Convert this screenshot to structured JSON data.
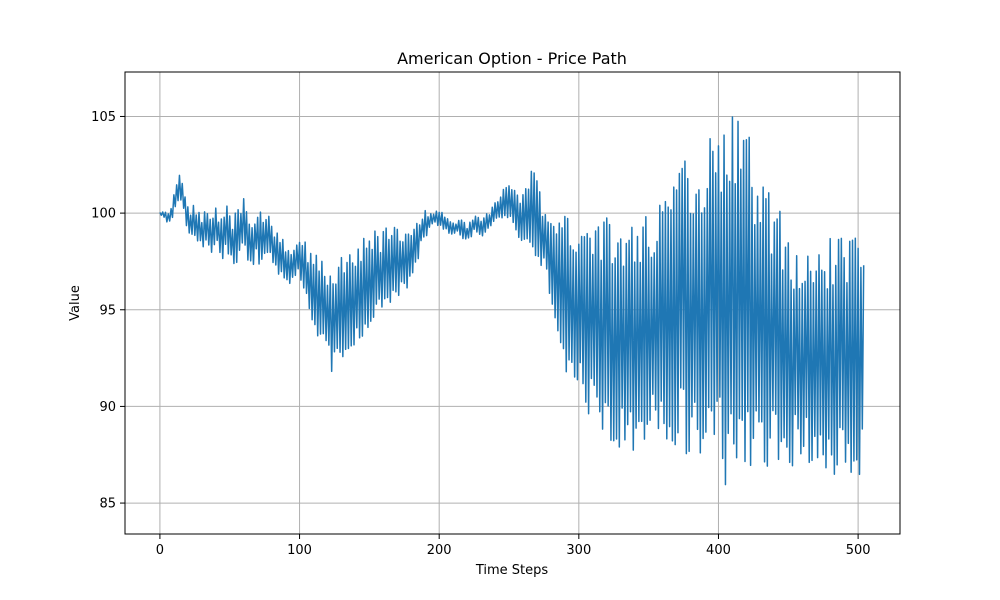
{
  "chart_data": {
    "type": "line",
    "title": "American Option - Price Path",
    "xlabel": "Time Steps",
    "ylabel": "Value",
    "xlim": [
      -25,
      530
    ],
    "ylim": [
      83.4,
      107.3
    ],
    "xticks": [
      0,
      100,
      200,
      300,
      400,
      500
    ],
    "yticks": [
      85,
      90,
      95,
      100,
      105
    ],
    "grid": true,
    "line_color": "#1f77b4",
    "series": [
      {
        "points": [
          [
            0,
            100.0
          ],
          [
            3,
            99.9
          ],
          [
            6,
            99.7
          ],
          [
            8,
            99.95
          ],
          [
            10,
            100.4
          ],
          [
            12,
            100.9
          ],
          [
            14,
            101.3
          ],
          [
            16,
            101.0
          ],
          [
            18,
            100.4
          ],
          [
            20,
            99.6
          ],
          [
            22,
            99.3
          ],
          [
            24,
            99.8
          ],
          [
            26,
            99.1
          ],
          [
            28,
            99.5
          ],
          [
            30,
            98.9
          ],
          [
            33,
            99.4
          ],
          [
            36,
            98.8
          ],
          [
            40,
            99.2
          ],
          [
            44,
            98.7
          ],
          [
            48,
            99.0
          ],
          [
            52,
            98.6
          ],
          [
            56,
            98.9
          ],
          [
            60,
            99.2
          ],
          [
            63,
            98.7
          ],
          [
            66,
            98.3
          ],
          [
            70,
            98.9
          ],
          [
            74,
            98.5
          ],
          [
            78,
            98.8
          ],
          [
            82,
            98.2
          ],
          [
            86,
            97.8
          ],
          [
            90,
            97.4
          ],
          [
            94,
            97.2
          ],
          [
            98,
            97.6
          ],
          [
            102,
            97.4
          ],
          [
            105,
            96.9
          ],
          [
            108,
            96.1
          ],
          [
            112,
            95.6
          ],
          [
            116,
            95.1
          ],
          [
            120,
            94.9
          ],
          [
            124,
            94.5
          ],
          [
            128,
            94.6
          ],
          [
            132,
            95.0
          ],
          [
            136,
            95.3
          ],
          [
            140,
            95.6
          ],
          [
            145,
            96.1
          ],
          [
            150,
            96.4
          ],
          [
            155,
            96.8
          ],
          [
            160,
            97.0
          ],
          [
            165,
            97.2
          ],
          [
            170,
            97.4
          ],
          [
            175,
            97.6
          ],
          [
            180,
            97.9
          ],
          [
            185,
            98.6
          ],
          [
            190,
            99.4
          ],
          [
            195,
            99.8
          ],
          [
            200,
            99.7
          ],
          [
            205,
            99.4
          ],
          [
            210,
            99.2
          ],
          [
            215,
            99.3
          ],
          [
            220,
            99.0
          ],
          [
            225,
            99.4
          ],
          [
            230,
            99.2
          ],
          [
            235,
            99.6
          ],
          [
            240,
            100.0
          ],
          [
            245,
            100.4
          ],
          [
            250,
            100.7
          ],
          [
            255,
            100.2
          ],
          [
            258,
            99.8
          ],
          [
            262,
            100.0
          ],
          [
            266,
            100.3
          ],
          [
            270,
            99.8
          ],
          [
            275,
            98.8
          ],
          [
            280,
            97.4
          ],
          [
            285,
            96.4
          ],
          [
            290,
            96.0
          ],
          [
            295,
            95.6
          ],
          [
            300,
            95.2
          ],
          [
            305,
            94.9
          ],
          [
            310,
            94.6
          ],
          [
            315,
            94.3
          ],
          [
            320,
            94.0
          ],
          [
            325,
            93.7
          ],
          [
            330,
            93.5
          ],
          [
            335,
            93.6
          ],
          [
            340,
            93.8
          ],
          [
            345,
            93.9
          ],
          [
            350,
            94.1
          ],
          [
            355,
            94.3
          ],
          [
            360,
            94.7
          ],
          [
            365,
            95.1
          ],
          [
            370,
            95.4
          ],
          [
            375,
            95.3
          ],
          [
            380,
            95.2
          ],
          [
            385,
            95.1
          ],
          [
            390,
            95.2
          ],
          [
            395,
            95.4
          ],
          [
            400,
            95.6
          ],
          [
            405,
            95.7
          ],
          [
            410,
            95.6
          ],
          [
            415,
            95.3
          ],
          [
            420,
            95.0
          ],
          [
            425,
            94.6
          ],
          [
            430,
            94.3
          ],
          [
            435,
            94.0
          ],
          [
            440,
            93.7
          ],
          [
            445,
            93.4
          ],
          [
            450,
            93.1
          ],
          [
            455,
            92.9
          ],
          [
            460,
            92.7
          ],
          [
            465,
            92.6
          ],
          [
            470,
            92.5
          ],
          [
            475,
            92.5
          ],
          [
            480,
            92.6
          ],
          [
            485,
            92.6
          ],
          [
            490,
            92.7
          ],
          [
            495,
            92.8
          ],
          [
            500,
            92.8
          ],
          [
            504,
            92.9
          ]
        ],
        "amplitude": [
          [
            0,
            0.05
          ],
          [
            10,
            0.5
          ],
          [
            20,
            0.7
          ],
          [
            40,
            1.0
          ],
          [
            60,
            1.6
          ],
          [
            80,
            1.0
          ],
          [
            100,
            0.9
          ],
          [
            110,
            2.2
          ],
          [
            130,
            2.8
          ],
          [
            150,
            2.4
          ],
          [
            170,
            1.9
          ],
          [
            185,
            0.9
          ],
          [
            195,
            0.4
          ],
          [
            240,
            0.5
          ],
          [
            255,
            1.2
          ],
          [
            268,
            2.4
          ],
          [
            275,
            1.4
          ],
          [
            290,
            4.0
          ],
          [
            310,
            5.5
          ],
          [
            330,
            6.1
          ],
          [
            350,
            6.0
          ],
          [
            370,
            7.6
          ],
          [
            390,
            8.6
          ],
          [
            405,
            9.8
          ],
          [
            420,
            9.4
          ],
          [
            440,
            7.0
          ],
          [
            460,
            5.4
          ],
          [
            480,
            6.2
          ],
          [
            504,
            6.9
          ]
        ]
      }
    ]
  }
}
